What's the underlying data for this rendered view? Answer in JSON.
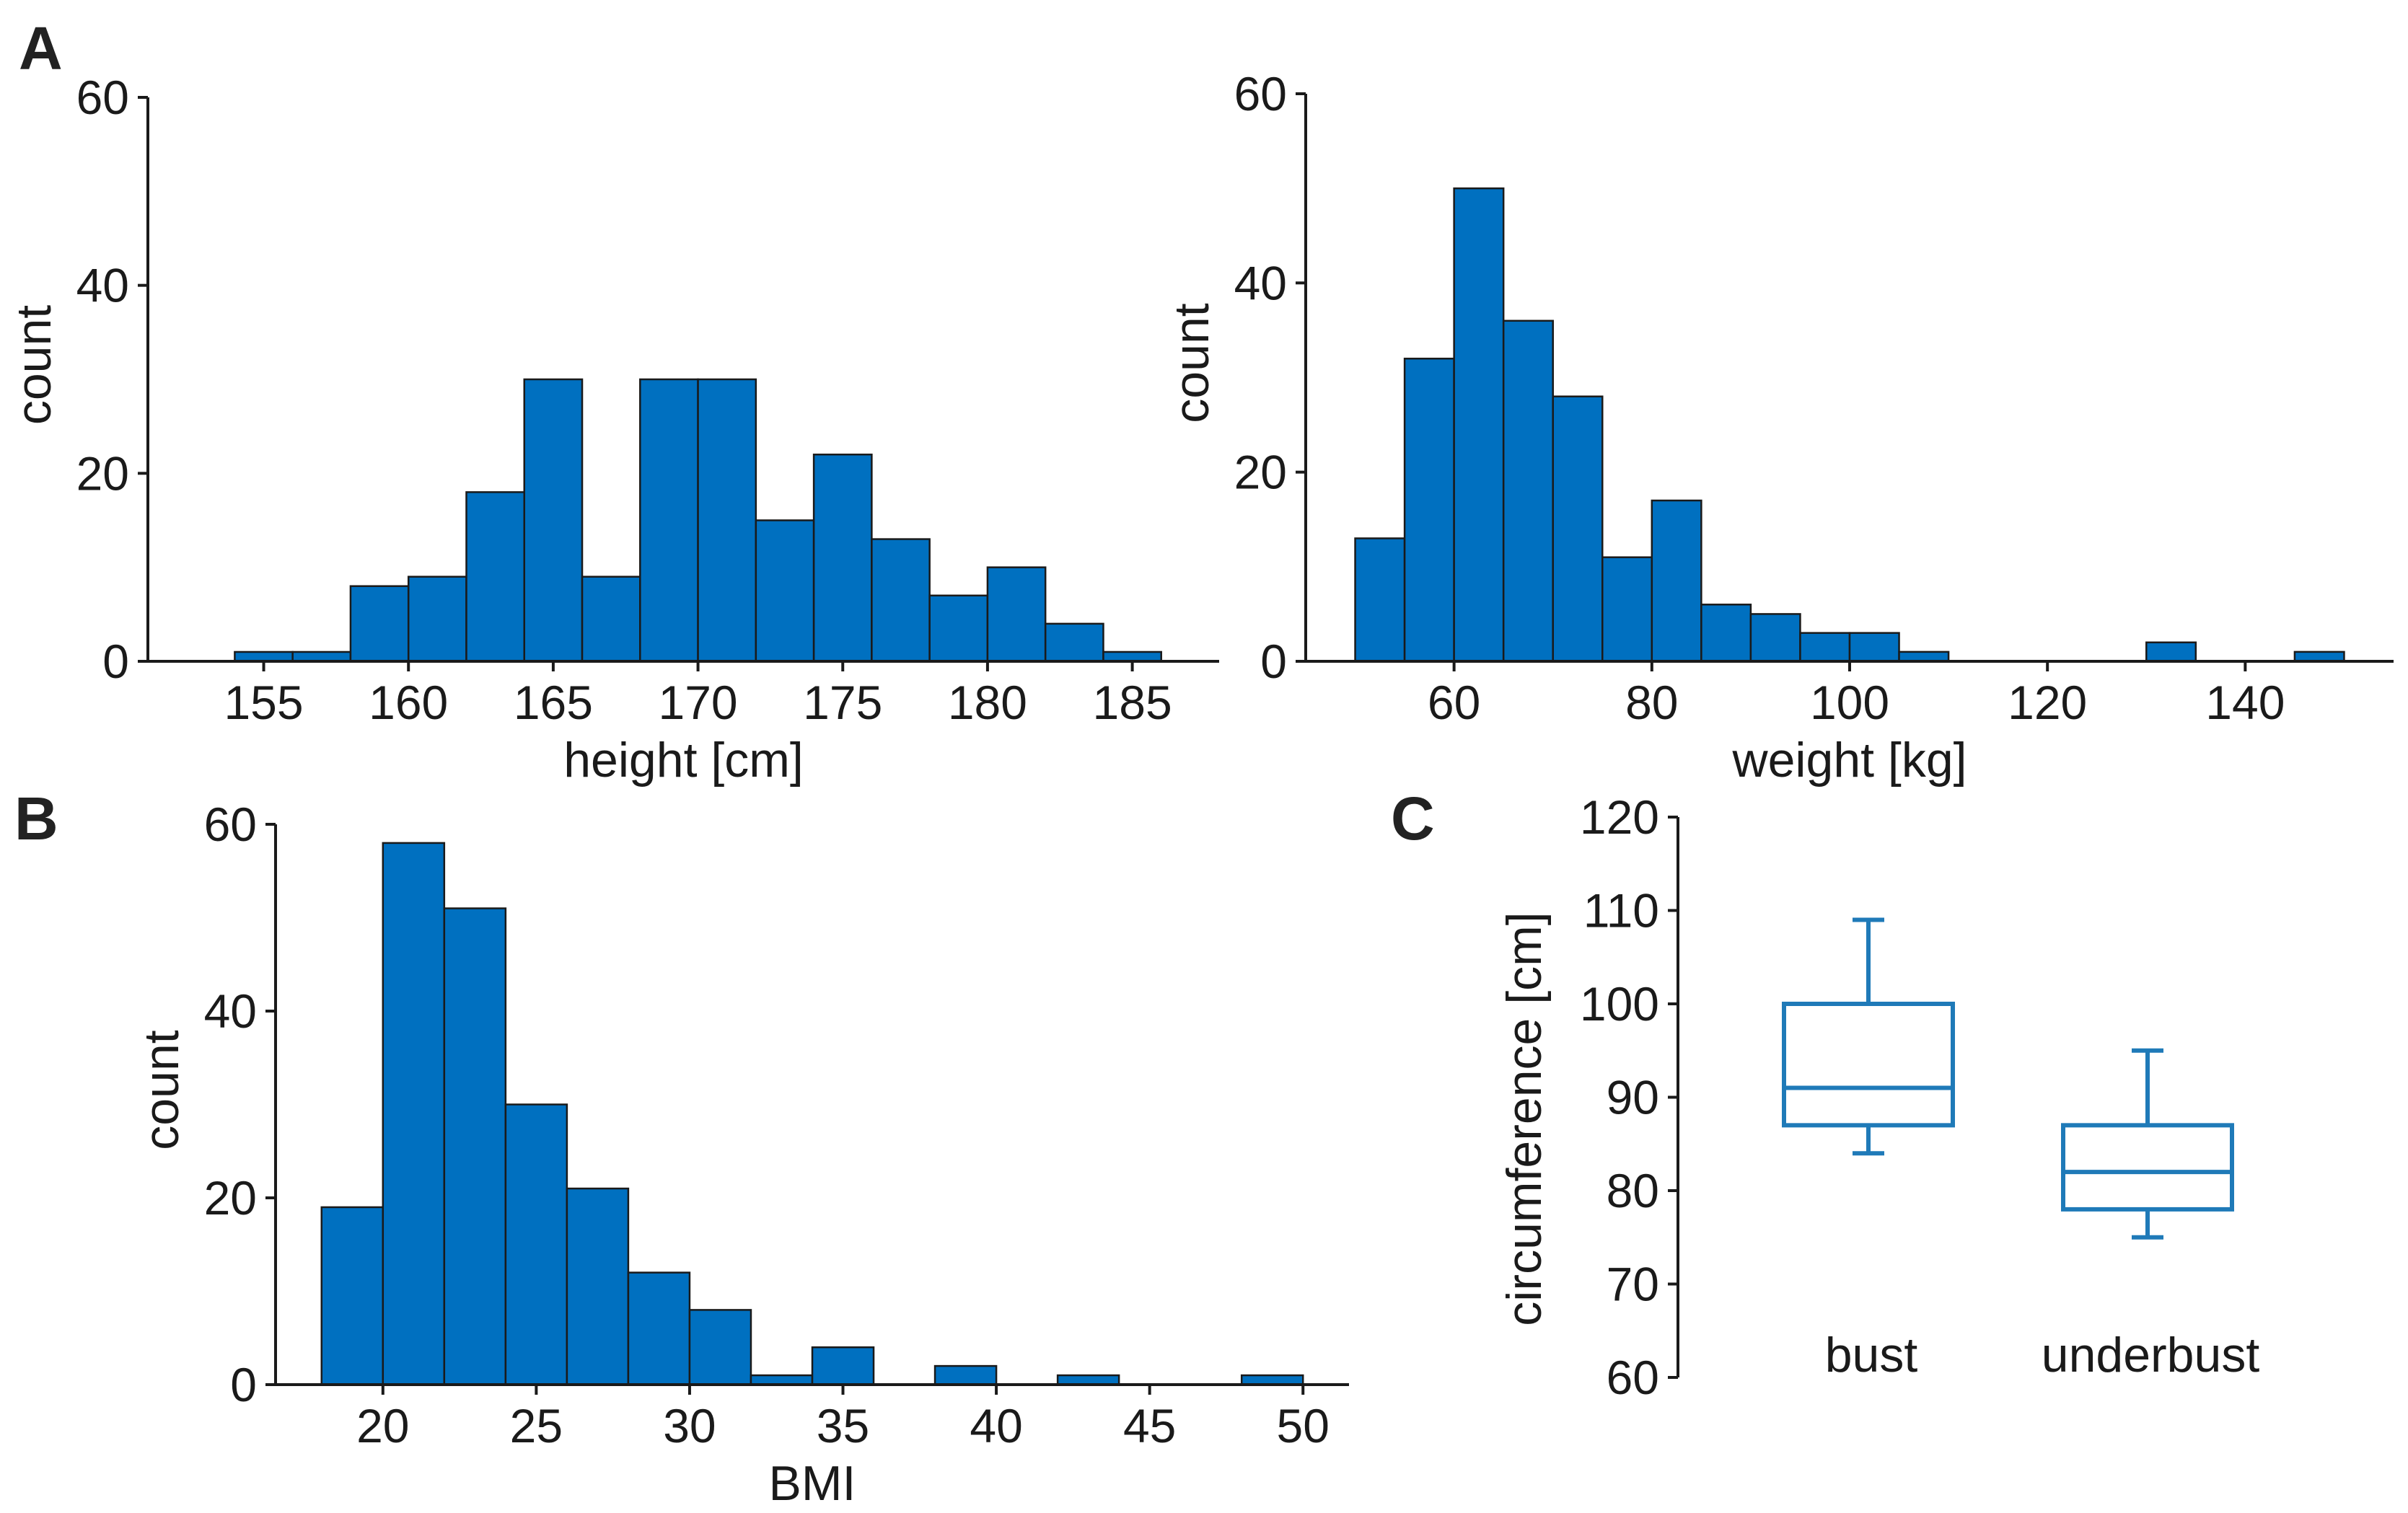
{
  "panel_labels": {
    "a": "A",
    "b": "B",
    "c": "C"
  },
  "colors": {
    "bar_fill": "#0070c0",
    "box_stroke": "#1f7ab8",
    "axis": "#1a1a1a"
  },
  "chart_data": [
    {
      "id": "height",
      "type": "bar",
      "subtype": "histogram",
      "panel": "A",
      "title": "",
      "xlabel": "height [cm]",
      "ylabel": "count",
      "xlim": [
        151,
        188
      ],
      "ylim": [
        0,
        60
      ],
      "xticks": [
        155,
        160,
        165,
        170,
        175,
        180,
        185
      ],
      "yticks": [
        0,
        20,
        40,
        60
      ],
      "bin_width": 2,
      "bins": [
        {
          "start": 154,
          "end": 156,
          "count": 1
        },
        {
          "start": 156,
          "end": 158,
          "count": 1
        },
        {
          "start": 158,
          "end": 160,
          "count": 8
        },
        {
          "start": 160,
          "end": 162,
          "count": 9
        },
        {
          "start": 162,
          "end": 164,
          "count": 18
        },
        {
          "start": 164,
          "end": 166,
          "count": 30
        },
        {
          "start": 166,
          "end": 168,
          "count": 9
        },
        {
          "start": 168,
          "end": 170,
          "count": 30
        },
        {
          "start": 170,
          "end": 172,
          "count": 30
        },
        {
          "start": 172,
          "end": 174,
          "count": 15
        },
        {
          "start": 174,
          "end": 176,
          "count": 22
        },
        {
          "start": 176,
          "end": 178,
          "count": 13
        },
        {
          "start": 178,
          "end": 180,
          "count": 7
        },
        {
          "start": 180,
          "end": 182,
          "count": 10
        },
        {
          "start": 182,
          "end": 184,
          "count": 4
        },
        {
          "start": 184,
          "end": 186,
          "count": 1
        }
      ]
    },
    {
      "id": "weight",
      "type": "bar",
      "subtype": "histogram",
      "panel": "A",
      "title": "",
      "xlabel": "weight [kg]",
      "ylabel": "count",
      "xlim": [
        45,
        155
      ],
      "ylim": [
        0,
        60
      ],
      "xticks": [
        60,
        80,
        100,
        120,
        140
      ],
      "yticks": [
        0,
        20,
        40,
        60
      ],
      "bin_width": 5,
      "bins": [
        {
          "start": 50,
          "end": 55,
          "count": 13
        },
        {
          "start": 55,
          "end": 60,
          "count": 32
        },
        {
          "start": 60,
          "end": 65,
          "count": 50
        },
        {
          "start": 65,
          "end": 70,
          "count": 36
        },
        {
          "start": 70,
          "end": 75,
          "count": 28
        },
        {
          "start": 75,
          "end": 80,
          "count": 11
        },
        {
          "start": 80,
          "end": 85,
          "count": 17
        },
        {
          "start": 85,
          "end": 90,
          "count": 6
        },
        {
          "start": 90,
          "end": 95,
          "count": 5
        },
        {
          "start": 95,
          "end": 100,
          "count": 3
        },
        {
          "start": 100,
          "end": 105,
          "count": 3
        },
        {
          "start": 105,
          "end": 110,
          "count": 1
        },
        {
          "start": 130,
          "end": 135,
          "count": 2
        },
        {
          "start": 145,
          "end": 150,
          "count": 1
        }
      ]
    },
    {
      "id": "bmi",
      "type": "bar",
      "subtype": "histogram",
      "panel": "B",
      "title": "",
      "xlabel": "BMI",
      "ylabel": "count",
      "xlim": [
        16.5,
        51.5
      ],
      "ylim": [
        0,
        60
      ],
      "xticks": [
        20,
        25,
        30,
        35,
        40,
        45,
        50
      ],
      "yticks": [
        0,
        20,
        40,
        60
      ],
      "bin_width": 2,
      "bins": [
        {
          "start": 18,
          "end": 20,
          "count": 19
        },
        {
          "start": 20,
          "end": 22,
          "count": 58
        },
        {
          "start": 22,
          "end": 24,
          "count": 51
        },
        {
          "start": 24,
          "end": 26,
          "count": 30
        },
        {
          "start": 26,
          "end": 28,
          "count": 21
        },
        {
          "start": 28,
          "end": 30,
          "count": 12
        },
        {
          "start": 30,
          "end": 32,
          "count": 8
        },
        {
          "start": 32,
          "end": 34,
          "count": 1
        },
        {
          "start": 34,
          "end": 36,
          "count": 4
        },
        {
          "start": 38,
          "end": 40,
          "count": 2
        },
        {
          "start": 42,
          "end": 44,
          "count": 1
        },
        {
          "start": 48,
          "end": 50,
          "count": 1
        }
      ]
    },
    {
      "id": "circumference",
      "type": "box",
      "panel": "C",
      "title": "",
      "xlabel": "",
      "ylabel": "circumference [cm]",
      "ylim": [
        60,
        120
      ],
      "yticks": [
        60,
        70,
        80,
        90,
        100,
        110,
        120
      ],
      "boxes": [
        {
          "label": "bust",
          "whisker_low": 84,
          "q1": 87,
          "median": 91,
          "q3": 100,
          "whisker_high": 109
        },
        {
          "label": "underbust",
          "whisker_low": 75,
          "q1": 78,
          "median": 82,
          "q3": 87,
          "whisker_high": 95
        }
      ]
    }
  ]
}
